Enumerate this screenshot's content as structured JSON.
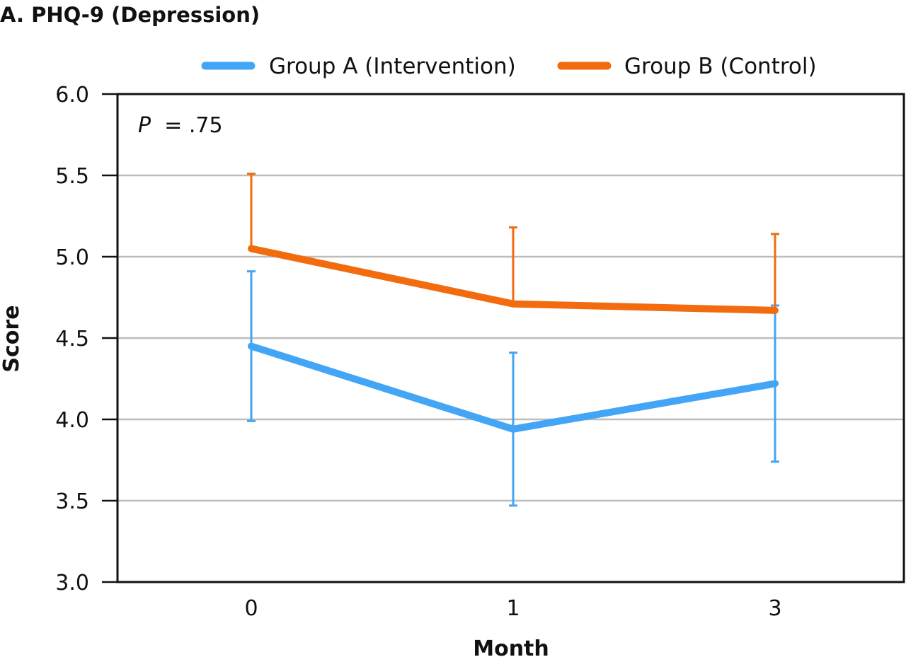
{
  "chart_data": {
    "type": "line",
    "title": "A. PHQ-9 (Depression)",
    "xlabel": "Month",
    "ylabel": "Score",
    "categories": [
      "0",
      "1",
      "3"
    ],
    "ylim": [
      3.0,
      6.0
    ],
    "yticks": [
      "3.0",
      "3.5",
      "4.0",
      "4.5",
      "5.0",
      "5.5",
      "6.0"
    ],
    "grid": true,
    "legend_position": "top",
    "annotation": {
      "italic": "P",
      "rest": " = .75"
    },
    "series": [
      {
        "name": "Group A (Intervention)",
        "color": "#42a5f5",
        "values": [
          4.45,
          3.94,
          4.22
        ],
        "error_upper": [
          4.91,
          4.41,
          4.7
        ],
        "error_lower": [
          3.99,
          3.47,
          3.74
        ]
      },
      {
        "name": "Group B (Control)",
        "color": "#f26b0f",
        "values": [
          5.05,
          4.71,
          4.67
        ],
        "error_upper": [
          5.51,
          5.18,
          5.14
        ],
        "error_lower": null
      }
    ]
  }
}
